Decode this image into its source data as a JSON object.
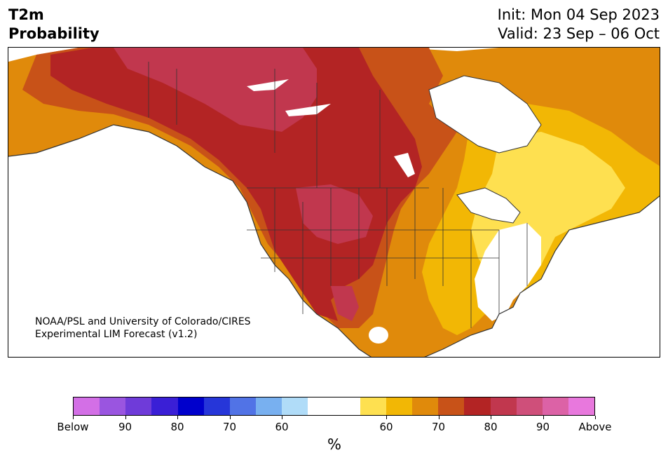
{
  "header": {
    "title_line1": "T2m",
    "title_line2": "Probability",
    "init": "Init: Mon 04 Sep 2023",
    "valid": "Valid: 23 Sep – 06 Oct"
  },
  "credit": {
    "line1": "NOAA/PSL and University of Colorado/CIRES",
    "line2": "Experimental LIM Forecast (v1.2)"
  },
  "colorbar": {
    "unit": "%",
    "colors": [
      "#d36fe6",
      "#9a55e0",
      "#6f3bd9",
      "#3a1fd6",
      "#0000cc",
      "#2636d9",
      "#5173e6",
      "#78b0f0",
      "#b0dcf8",
      "#ffffff",
      "#ffffff",
      "#fee050",
      "#f2b705",
      "#e08a0b",
      "#c85218",
      "#b32424",
      "#c1374e",
      "#cf4f7a",
      "#dc62a6",
      "#e878dd"
    ],
    "tick_labels": [
      "Below",
      "90",
      "80",
      "70",
      "60",
      "60",
      "70",
      "80",
      "90",
      "Above"
    ]
  },
  "legend_colors": {
    "above_50": "#fee050",
    "above_60": "#f2b705",
    "above_70": "#e08a0b",
    "above_75": "#c85218",
    "above_80": "#b32424",
    "above_85": "#c1374e",
    "land_neutral": "#ffffff",
    "water": "#ffffff",
    "outline": "#333333"
  }
}
